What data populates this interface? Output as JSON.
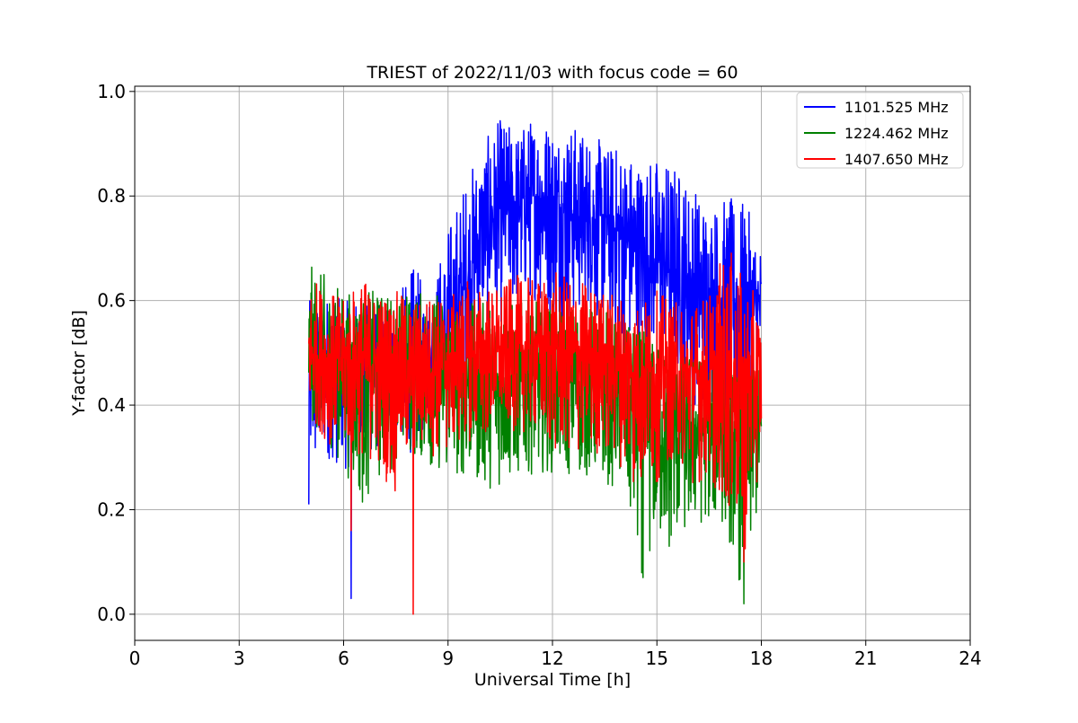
{
  "chart_data": {
    "type": "line",
    "title": "TRIEST of 2022/11/03 with focus code = 60",
    "xlabel": "Universal Time [h]",
    "ylabel": "Y-factor [dB]",
    "xlim": [
      0,
      24
    ],
    "ylim": [
      -0.05,
      1.01
    ],
    "xticks": [
      0,
      3,
      6,
      9,
      12,
      15,
      18,
      21,
      24
    ],
    "yticks": [
      0.0,
      0.2,
      0.4,
      0.6,
      0.8,
      1.0
    ],
    "ytick_labels": [
      "0.0",
      "0.2",
      "0.4",
      "0.6",
      "0.8",
      "1.0"
    ],
    "grid": true,
    "legend_position": "top-right",
    "series": [
      {
        "name": "1101.525 MHz",
        "color": "#0000ff",
        "x": [
          5.0,
          5.5,
          6.0,
          6.5,
          7.0,
          7.5,
          8.0,
          8.5,
          9.0,
          9.5,
          10.0,
          10.5,
          11.0,
          11.5,
          12.0,
          12.5,
          13.0,
          13.5,
          14.0,
          14.5,
          15.0,
          15.5,
          16.0,
          16.5,
          17.0,
          17.5,
          18.0
        ],
        "y_mean": [
          0.47,
          0.47,
          0.47,
          0.47,
          0.47,
          0.47,
          0.47,
          0.48,
          0.53,
          0.63,
          0.74,
          0.78,
          0.79,
          0.8,
          0.79,
          0.77,
          0.76,
          0.75,
          0.73,
          0.69,
          0.68,
          0.66,
          0.63,
          0.62,
          0.6,
          0.6,
          0.58
        ],
        "y_max": [
          0.6,
          0.62,
          0.6,
          0.6,
          0.6,
          0.6,
          0.67,
          0.62,
          0.75,
          0.84,
          0.9,
          0.95,
          0.93,
          0.96,
          0.95,
          0.94,
          0.93,
          0.9,
          0.9,
          0.88,
          0.88,
          0.87,
          0.83,
          0.79,
          0.8,
          0.79,
          0.72
        ],
        "y_min": [
          0.21,
          0.3,
          0.27,
          0.3,
          0.3,
          0.35,
          0.3,
          0.38,
          0.4,
          0.45,
          0.55,
          0.55,
          0.58,
          0.6,
          0.56,
          0.55,
          0.58,
          0.55,
          0.5,
          0.48,
          0.5,
          0.48,
          0.4,
          0.38,
          0.35,
          0.33,
          0.4
        ],
        "dips": [
          {
            "x": 5.0,
            "y": 0.21
          },
          {
            "x": 6.22,
            "y": 0.03
          }
        ]
      },
      {
        "name": "1224.462 MHz",
        "color": "#008000",
        "x": [
          5.0,
          5.5,
          6.0,
          6.5,
          7.0,
          7.5,
          8.0,
          8.5,
          9.0,
          9.5,
          10.0,
          10.5,
          11.0,
          11.5,
          12.0,
          12.5,
          13.0,
          13.5,
          14.0,
          14.5,
          15.0,
          15.5,
          16.0,
          16.5,
          17.0,
          17.5,
          18.0
        ],
        "y_mean": [
          0.49,
          0.48,
          0.47,
          0.47,
          0.47,
          0.47,
          0.47,
          0.46,
          0.45,
          0.45,
          0.44,
          0.44,
          0.44,
          0.45,
          0.45,
          0.45,
          0.44,
          0.43,
          0.42,
          0.38,
          0.37,
          0.36,
          0.36,
          0.35,
          0.35,
          0.34,
          0.36
        ],
        "y_max": [
          0.67,
          0.65,
          0.62,
          0.62,
          0.62,
          0.62,
          0.62,
          0.62,
          0.62,
          0.6,
          0.6,
          0.6,
          0.6,
          0.6,
          0.6,
          0.6,
          0.6,
          0.6,
          0.55,
          0.55,
          0.52,
          0.5,
          0.5,
          0.5,
          0.48,
          0.46,
          0.48
        ],
        "y_min": [
          0.37,
          0.33,
          0.28,
          0.2,
          0.25,
          0.28,
          0.3,
          0.28,
          0.26,
          0.26,
          0.24,
          0.24,
          0.26,
          0.27,
          0.27,
          0.26,
          0.26,
          0.25,
          0.23,
          0.07,
          0.12,
          0.13,
          0.15,
          0.18,
          0.16,
          0.02,
          0.23
        ],
        "dips": [
          {
            "x": 14.6,
            "y": 0.07
          },
          {
            "x": 15.35,
            "y": 0.13
          },
          {
            "x": 17.5,
            "y": 0.02
          }
        ]
      },
      {
        "name": "1407.650 MHz",
        "color": "#ff0000",
        "x": [
          5.0,
          5.5,
          6.0,
          6.5,
          7.0,
          7.5,
          8.0,
          8.5,
          9.0,
          9.5,
          10.0,
          10.5,
          11.0,
          11.5,
          12.0,
          12.5,
          13.0,
          13.5,
          14.0,
          14.5,
          15.0,
          15.5,
          16.0,
          16.5,
          17.0,
          17.5,
          18.0
        ],
        "y_mean": [
          0.5,
          0.49,
          0.49,
          0.48,
          0.48,
          0.48,
          0.48,
          0.48,
          0.49,
          0.49,
          0.5,
          0.5,
          0.5,
          0.51,
          0.51,
          0.5,
          0.5,
          0.49,
          0.48,
          0.47,
          0.46,
          0.46,
          0.45,
          0.45,
          0.45,
          0.44,
          0.45
        ],
        "y_max": [
          0.65,
          0.63,
          0.6,
          0.65,
          0.62,
          0.62,
          0.6,
          0.62,
          0.6,
          0.64,
          0.63,
          0.63,
          0.65,
          0.64,
          0.66,
          0.64,
          0.64,
          0.62,
          0.62,
          0.6,
          0.62,
          0.6,
          0.6,
          0.62,
          0.71,
          0.64,
          0.6
        ],
        "y_min": [
          0.38,
          0.33,
          0.3,
          0.3,
          0.28,
          0.22,
          0.3,
          0.3,
          0.3,
          0.33,
          0.33,
          0.35,
          0.35,
          0.34,
          0.3,
          0.3,
          0.3,
          0.3,
          0.28,
          0.22,
          0.25,
          0.3,
          0.25,
          0.25,
          0.2,
          0.1,
          0.3
        ],
        "dips": [
          {
            "x": 6.22,
            "y": 0.16
          },
          {
            "x": 8.0,
            "y": 0.0
          },
          {
            "x": 17.5,
            "y": 0.1
          }
        ]
      }
    ]
  }
}
